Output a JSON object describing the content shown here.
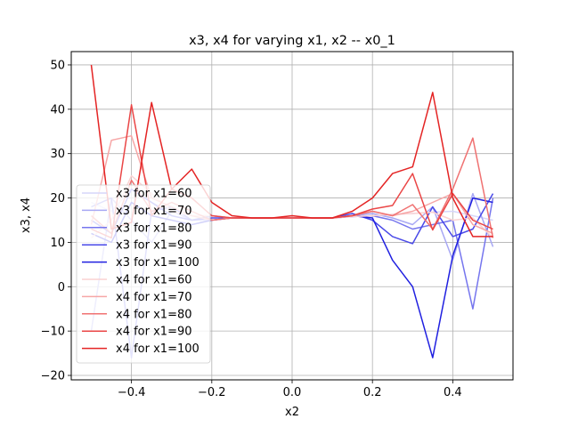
{
  "chart_data": {
    "type": "line",
    "title": "x3, x4 for varying x1, x2 -- x0_1",
    "xlabel": "x2",
    "ylabel": "x3, x4",
    "xlim": [
      -0.55,
      0.55
    ],
    "ylim": [
      -21,
      53
    ],
    "xticks": [
      -0.4,
      -0.2,
      0.0,
      0.2,
      0.4
    ],
    "xtick_labels": [
      "−0.4",
      "−0.2",
      "0.0",
      "0.2",
      "0.4"
    ],
    "yticks": [
      -20,
      -10,
      0,
      10,
      20,
      30,
      40,
      50
    ],
    "ytick_labels": [
      "−20",
      "−10",
      "0",
      "10",
      "20",
      "30",
      "40",
      "50"
    ],
    "grid": true,
    "legend_position": "lower-left",
    "x": [
      -0.5,
      -0.45,
      -0.4,
      -0.35,
      -0.3,
      -0.25,
      -0.2,
      -0.15,
      -0.1,
      -0.05,
      0.0,
      0.05,
      0.1,
      0.15,
      0.2,
      0.25,
      0.3,
      0.35,
      0.4,
      0.45,
      0.5
    ],
    "series": [
      {
        "name": "x3 for x1=60",
        "color": "#d6d6fa",
        "values": [
          19,
          17,
          22,
          19,
          17,
          16,
          16,
          15.5,
          15.5,
          15.5,
          15.5,
          15.5,
          15.5,
          15.8,
          16,
          16.3,
          16.5,
          16.8,
          17,
          16,
          15
        ]
      },
      {
        "name": "x3 for x1=70",
        "color": "#a8a8f4",
        "values": [
          -10,
          20,
          15,
          10,
          17,
          15,
          15,
          15.5,
          15.5,
          15.5,
          15.5,
          15.5,
          15.5,
          16,
          16.5,
          15.5,
          14,
          18,
          6,
          21,
          9
        ]
      },
      {
        "name": "x3 for x1=80",
        "color": "#7676ee",
        "values": [
          18,
          20,
          -16,
          17,
          18,
          15,
          16,
          15.5,
          15.5,
          15.5,
          15.5,
          15.5,
          15.5,
          15.8,
          16,
          15,
          13,
          14,
          15,
          -5,
          20
        ]
      },
      {
        "name": "x3 for x1=90",
        "color": "#4a4ae8",
        "values": [
          15,
          12,
          22,
          19,
          16,
          15,
          15.5,
          15.5,
          15.5,
          15.5,
          15.5,
          15.5,
          15.5,
          16.5,
          15,
          11.3,
          9.7,
          18,
          11.3,
          13,
          21
        ]
      },
      {
        "name": "x3 for x1=100",
        "color": "#2020e0",
        "values": [
          12,
          10,
          19,
          16,
          15,
          14,
          15,
          15.5,
          15.5,
          15.5,
          15.5,
          15.5,
          15.5,
          16,
          15.5,
          6,
          0,
          -16,
          7,
          20,
          19
        ]
      },
      {
        "name": "x4 for x1=60",
        "color": "#fad2d2",
        "values": [
          11,
          15,
          25,
          21,
          17,
          16,
          16,
          15.5,
          15.5,
          15.5,
          15.5,
          15.5,
          15.5,
          15.8,
          16,
          16.3,
          16.5,
          16.8,
          15,
          15.5,
          11
        ]
      },
      {
        "name": "x4 for x1=70",
        "color": "#f6a6a6",
        "values": [
          14,
          33,
          34,
          20,
          18,
          16,
          15,
          15.5,
          15.5,
          15.5,
          15.5,
          15.5,
          15.5,
          16,
          17,
          16,
          17,
          19,
          21,
          14,
          12
        ]
      },
      {
        "name": "x4 for x1=80",
        "color": "#f07272",
        "values": [
          16,
          12,
          24,
          17,
          19,
          17,
          15,
          15.5,
          15.5,
          15.5,
          15.5,
          15.5,
          15.5,
          16,
          17,
          16,
          18.5,
          13,
          22,
          33.5,
          11
        ]
      },
      {
        "name": "x4 for x1=90",
        "color": "#ea4646",
        "values": [
          13,
          11,
          41,
          16,
          22,
          20,
          16,
          15.5,
          15.5,
          15.5,
          15.5,
          15.5,
          15.5,
          16,
          17.5,
          18.3,
          25.5,
          12.8,
          21,
          15,
          13
        ]
      },
      {
        "name": "x4 for x1=100",
        "color": "#e42424",
        "values": [
          50,
          13,
          14.5,
          41.5,
          22,
          26.5,
          19,
          16,
          15.5,
          15.5,
          16,
          15.5,
          15.5,
          17,
          20,
          25.5,
          27,
          43.8,
          20,
          11.3,
          11.3
        ]
      }
    ]
  }
}
